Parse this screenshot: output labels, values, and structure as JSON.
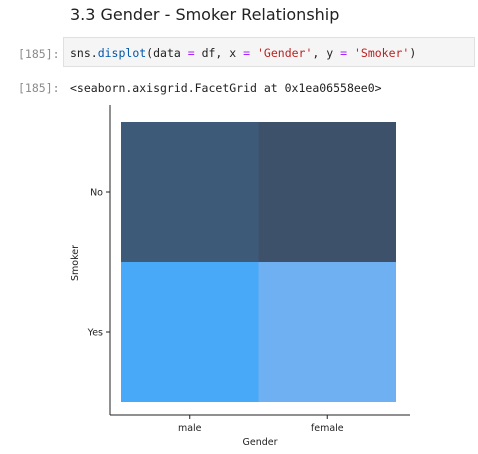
{
  "notebook": {
    "heading": "3.3 Gender - Smoker Relationship",
    "input_prompt": "[185]:",
    "output_prompt": "[185]:",
    "code": {
      "module": "sns.",
      "function": "displot",
      "open": "(data ",
      "op1": "=",
      "arg1": " df, x ",
      "op2": "=",
      "space": " ",
      "str1": "'Gender'",
      "mid": ", y ",
      "op3": "=",
      "str2": "'Smoker'",
      "close": ")"
    },
    "output_text": "<seaborn.axisgrid.FacetGrid at 0x1ea06558ee0>"
  },
  "chart_data": {
    "type": "heatmap",
    "xlabel": "Gender",
    "ylabel": "Smoker",
    "x_categories": [
      "male",
      "female"
    ],
    "y_categories": [
      "No",
      "Yes"
    ],
    "cells": [
      {
        "x": "male",
        "y": "No",
        "color": "#3d5a78"
      },
      {
        "x": "female",
        "y": "No",
        "color": "#3e516b"
      },
      {
        "x": "male",
        "y": "Yes",
        "color": "#47a9f7"
      },
      {
        "x": "female",
        "y": "Yes",
        "color": "#6eb0f2"
      }
    ]
  }
}
